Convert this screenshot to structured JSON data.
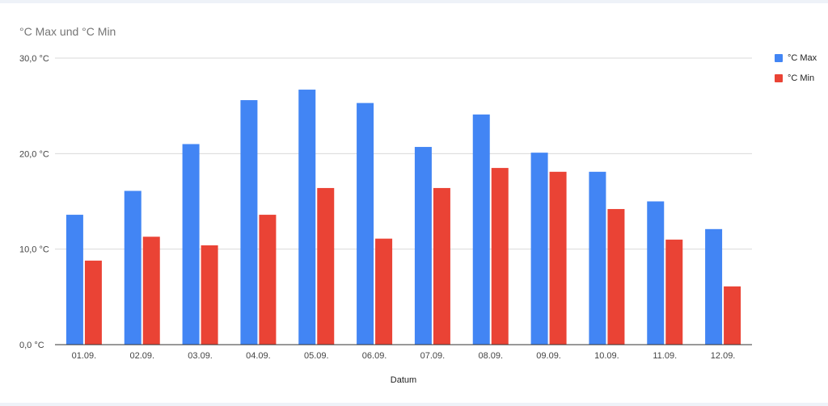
{
  "title": "°C Max und °C Min",
  "colors": {
    "max": "#4285f4",
    "min": "#ea4335",
    "grid": "#d9d9d9",
    "axis": "#333333"
  },
  "legend": {
    "max_label": "°C Max",
    "min_label": "°C Min"
  },
  "chart_data": {
    "type": "bar",
    "title": "°C Max und °C Min",
    "xlabel": "Datum",
    "ylabel": "",
    "categories": [
      "01.09.",
      "02.09.",
      "03.09.",
      "04.09.",
      "05.09.",
      "06.09.",
      "07.09.",
      "08.09.",
      "09.09.",
      "10.09.",
      "11.09.",
      "12.09."
    ],
    "series": [
      {
        "name": "°C Max",
        "values": [
          13.6,
          16.1,
          21.0,
          25.6,
          26.7,
          25.3,
          20.7,
          24.1,
          20.1,
          18.1,
          15.0,
          12.1
        ]
      },
      {
        "name": "°C Min",
        "values": [
          8.8,
          11.3,
          10.4,
          13.6,
          16.4,
          11.1,
          16.4,
          18.5,
          18.1,
          14.2,
          11.0,
          6.1
        ]
      }
    ],
    "yticks": [
      0,
      10,
      20,
      30
    ],
    "ytick_labels": [
      "0,0 °C",
      "10,0 °C",
      "20,0 °C",
      "30,0 °C"
    ],
    "ylim": [
      0,
      30
    ],
    "grid": true,
    "legend_position": "right"
  }
}
